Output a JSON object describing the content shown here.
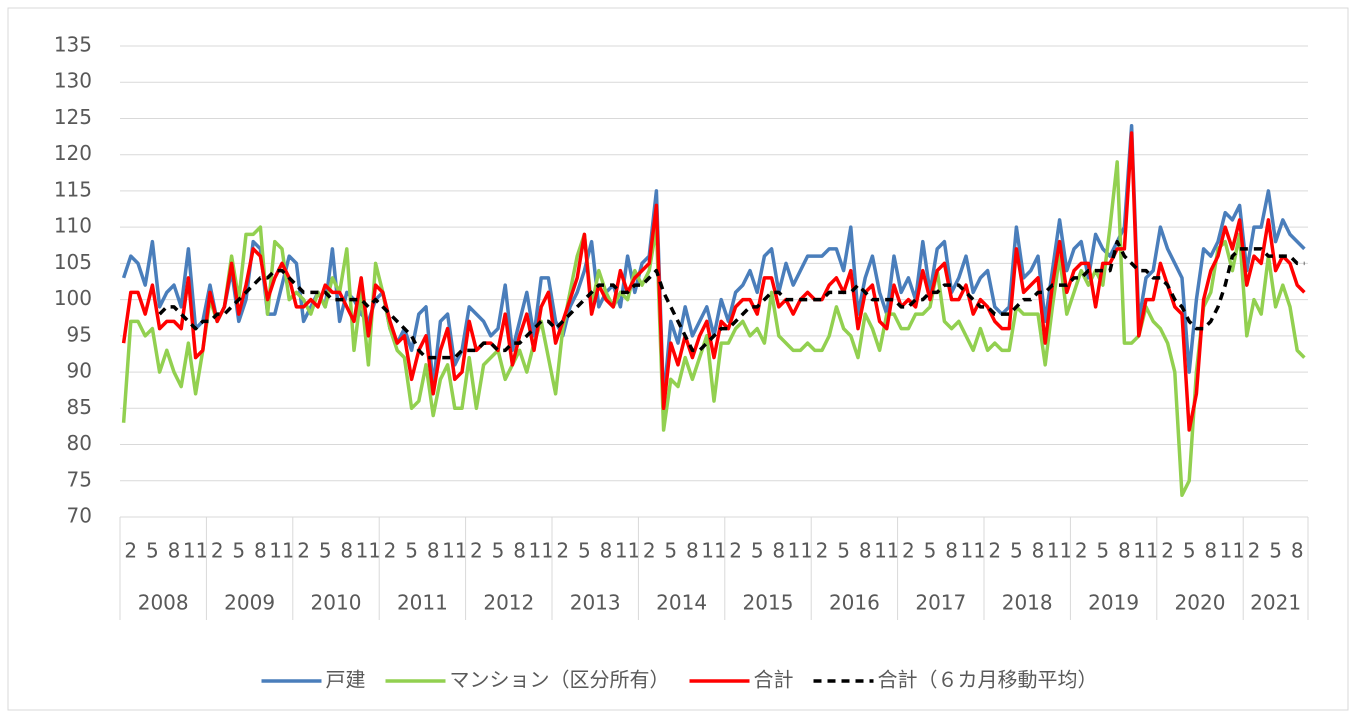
{
  "chart_data": {
    "type": "line",
    "categories": [
      null,
      "2",
      null,
      null,
      "5",
      null,
      null,
      "8",
      null,
      null,
      "11",
      null,
      null,
      "2",
      null,
      null,
      "5",
      null,
      null,
      "8",
      null,
      null,
      "11",
      null,
      null,
      "2",
      null,
      null,
      "5",
      null,
      null,
      "8",
      null,
      null,
      "11",
      null,
      null,
      "2",
      null,
      null,
      "5",
      null,
      null,
      "8",
      null,
      null,
      "11",
      null,
      null,
      "2",
      null,
      null,
      "5",
      null,
      null,
      "8",
      null,
      null,
      "11",
      null,
      null,
      "2",
      null,
      null,
      "5",
      null,
      null,
      "8",
      null,
      null,
      "11",
      null,
      null,
      "2",
      null,
      null,
      "5",
      null,
      null,
      "8",
      null,
      null,
      "11",
      null,
      null,
      "2",
      null,
      null,
      "5",
      null,
      null,
      "8",
      null,
      null,
      "11",
      null,
      null,
      "2",
      null,
      null,
      "5",
      null,
      null,
      "8",
      null,
      null,
      "11",
      null,
      null,
      "2",
      null,
      null,
      "5",
      null,
      null,
      "8",
      null,
      null,
      "11",
      null,
      null,
      "2",
      null,
      null,
      "5",
      null,
      null,
      "8",
      null,
      null,
      "11",
      null,
      null,
      "2",
      null,
      null,
      "5",
      null,
      null,
      "8",
      null,
      null,
      "11",
      null,
      null,
      "2",
      null,
      null,
      "5",
      null,
      null,
      "8",
      null,
      null,
      "11",
      null,
      null,
      "2",
      null,
      null,
      "5",
      null,
      null,
      "8",
      null
    ],
    "years": [
      "2008",
      "2009",
      "2010",
      "2011",
      "2012",
      "2013",
      "2014",
      "2015",
      "2016",
      "2017",
      "2018",
      "2019",
      "2020",
      "2021"
    ],
    "ylim": [
      70,
      135
    ],
    "yticks": [
      70,
      75,
      80,
      85,
      90,
      95,
      100,
      105,
      110,
      115,
      120,
      125,
      130,
      135
    ],
    "grid": true,
    "series": [
      {
        "name": "戸建",
        "color": "#4a7ebb",
        "values": [
          103,
          106,
          105,
          102,
          108,
          99,
          101,
          102,
          99,
          107,
          96,
          97,
          102,
          97,
          99,
          104,
          97,
          100,
          108,
          107,
          98,
          98,
          102,
          106,
          105,
          97,
          99,
          101,
          99,
          107,
          97,
          101,
          100,
          98,
          97,
          100,
          101,
          96,
          94,
          96,
          93,
          98,
          99,
          88,
          97,
          98,
          91,
          93,
          99,
          98,
          97,
          95,
          96,
          102,
          93,
          97,
          101,
          95,
          103,
          103,
          97,
          95,
          99,
          101,
          104,
          108,
          99,
          101,
          102,
          99,
          106,
          101,
          105,
          106,
          115,
          86,
          97,
          94,
          99,
          95,
          97,
          99,
          95,
          100,
          97,
          101,
          102,
          104,
          101,
          106,
          107,
          101,
          105,
          102,
          104,
          106,
          106,
          106,
          107,
          107,
          104,
          110,
          98,
          103,
          106,
          101,
          98,
          106,
          101,
          103,
          100,
          108,
          101,
          107,
          108,
          101,
          103,
          106,
          101,
          103,
          104,
          99,
          98,
          99,
          110,
          103,
          104,
          106,
          97,
          104,
          111,
          104,
          107,
          108,
          103,
          109,
          107,
          106,
          108,
          110,
          124,
          97,
          103,
          104,
          110,
          107,
          105,
          103,
          90,
          100,
          107,
          106,
          108,
          112,
          111,
          113,
          104,
          110,
          110,
          115,
          108,
          111,
          109,
          108,
          107
        ]
      },
      {
        "name": "マンション（区分所有）",
        "color": "#92d050",
        "values": [
          83,
          97,
          97,
          95,
          96,
          90,
          93,
          90,
          88,
          94,
          87,
          93,
          100,
          97,
          99,
          106,
          100,
          109,
          109,
          110,
          98,
          108,
          107,
          100,
          101,
          100,
          98,
          101,
          99,
          103,
          101,
          107,
          93,
          101,
          91,
          105,
          101,
          96,
          93,
          92,
          85,
          86,
          91,
          84,
          89,
          91,
          85,
          85,
          92,
          85,
          91,
          92,
          93,
          89,
          91,
          93,
          90,
          94,
          97,
          92,
          87,
          96,
          101,
          106,
          109,
          99,
          104,
          101,
          99,
          101,
          100,
          104,
          102,
          104,
          110,
          82,
          89,
          88,
          92,
          89,
          92,
          95,
          86,
          94,
          94,
          96,
          97,
          95,
          96,
          94,
          101,
          95,
          94,
          93,
          93,
          94,
          93,
          93,
          95,
          99,
          96,
          95,
          92,
          98,
          96,
          93,
          98,
          98,
          96,
          96,
          98,
          98,
          99,
          104,
          97,
          96,
          97,
          95,
          93,
          96,
          93,
          94,
          93,
          93,
          99,
          98,
          98,
          98,
          91,
          99,
          106,
          98,
          101,
          104,
          102,
          104,
          102,
          110,
          119,
          94,
          94,
          95,
          99,
          97,
          96,
          94,
          90,
          73,
          75,
          90,
          99,
          101,
          107,
          108,
          104,
          109,
          95,
          100,
          98,
          106,
          99,
          102,
          99,
          93,
          92
        ]
      },
      {
        "name": "合計",
        "color": "#ff0000",
        "values": [
          94,
          101,
          101,
          98,
          102,
          96,
          97,
          97,
          96,
          103,
          92,
          93,
          101,
          97,
          99,
          105,
          98,
          102,
          107,
          106,
          100,
          103,
          105,
          103,
          99,
          99,
          100,
          99,
          102,
          101,
          101,
          99,
          97,
          103,
          95,
          102,
          101,
          97,
          94,
          95,
          89,
          93,
          95,
          87,
          93,
          96,
          89,
          90,
          97,
          93,
          94,
          94,
          93,
          98,
          91,
          95,
          98,
          93,
          99,
          101,
          94,
          97,
          100,
          103,
          109,
          98,
          102,
          100,
          99,
          104,
          101,
          103,
          104,
          105,
          113,
          85,
          94,
          91,
          95,
          92,
          95,
          97,
          92,
          97,
          96,
          99,
          100,
          100,
          98,
          103,
          103,
          99,
          100,
          98,
          100,
          101,
          100,
          100,
          102,
          103,
          101,
          104,
          96,
          101,
          102,
          97,
          96,
          102,
          99,
          100,
          99,
          104,
          100,
          104,
          105,
          100,
          100,
          102,
          98,
          100,
          99,
          97,
          96,
          96,
          107,
          101,
          102,
          103,
          94,
          102,
          108,
          101,
          104,
          105,
          105,
          99,
          105,
          105,
          107,
          107,
          123,
          95,
          100,
          100,
          105,
          102,
          99,
          98,
          82,
          87,
          100,
          104,
          106,
          110,
          107,
          111,
          102,
          106,
          105,
          111,
          104,
          106,
          105,
          102,
          101
        ]
      },
      {
        "name": "合計（６カ月移動平均）",
        "color": "#000000",
        "dashed": true,
        "values": [
          null,
          null,
          null,
          null,
          null,
          98,
          99,
          99,
          98,
          97,
          96,
          97,
          97,
          98,
          98,
          99,
          100,
          101,
          102,
          103,
          103,
          104,
          104,
          103,
          102,
          101,
          101,
          101,
          101,
          100,
          100,
          100,
          100,
          100,
          99,
          100,
          99,
          98,
          97,
          96,
          95,
          93,
          92,
          92,
          92,
          92,
          92,
          93,
          93,
          93,
          94,
          94,
          93,
          93,
          94,
          94,
          95,
          96,
          97,
          97,
          96,
          97,
          98,
          99,
          100,
          101,
          102,
          102,
          102,
          101,
          101,
          102,
          102,
          103,
          104,
          101,
          99,
          97,
          95,
          93,
          93,
          94,
          95,
          96,
          96,
          97,
          98,
          99,
          99,
          100,
          101,
          101,
          100,
          100,
          100,
          100,
          100,
          100,
          101,
          101,
          101,
          101,
          102,
          101,
          100,
          100,
          100,
          100,
          99,
          99,
          100,
          100,
          101,
          101,
          102,
          102,
          102,
          101,
          100,
          99,
          99,
          98,
          98,
          98,
          99,
          100,
          100,
          101,
          101,
          102,
          102,
          102,
          103,
          103,
          104,
          104,
          104,
          104,
          108,
          106,
          105,
          104,
          104,
          103,
          103,
          102,
          100,
          99,
          97,
          96,
          96,
          97,
          99,
          102,
          106,
          107,
          107,
          107,
          107,
          106,
          106,
          106,
          106,
          105,
          105
        ]
      }
    ]
  }
}
